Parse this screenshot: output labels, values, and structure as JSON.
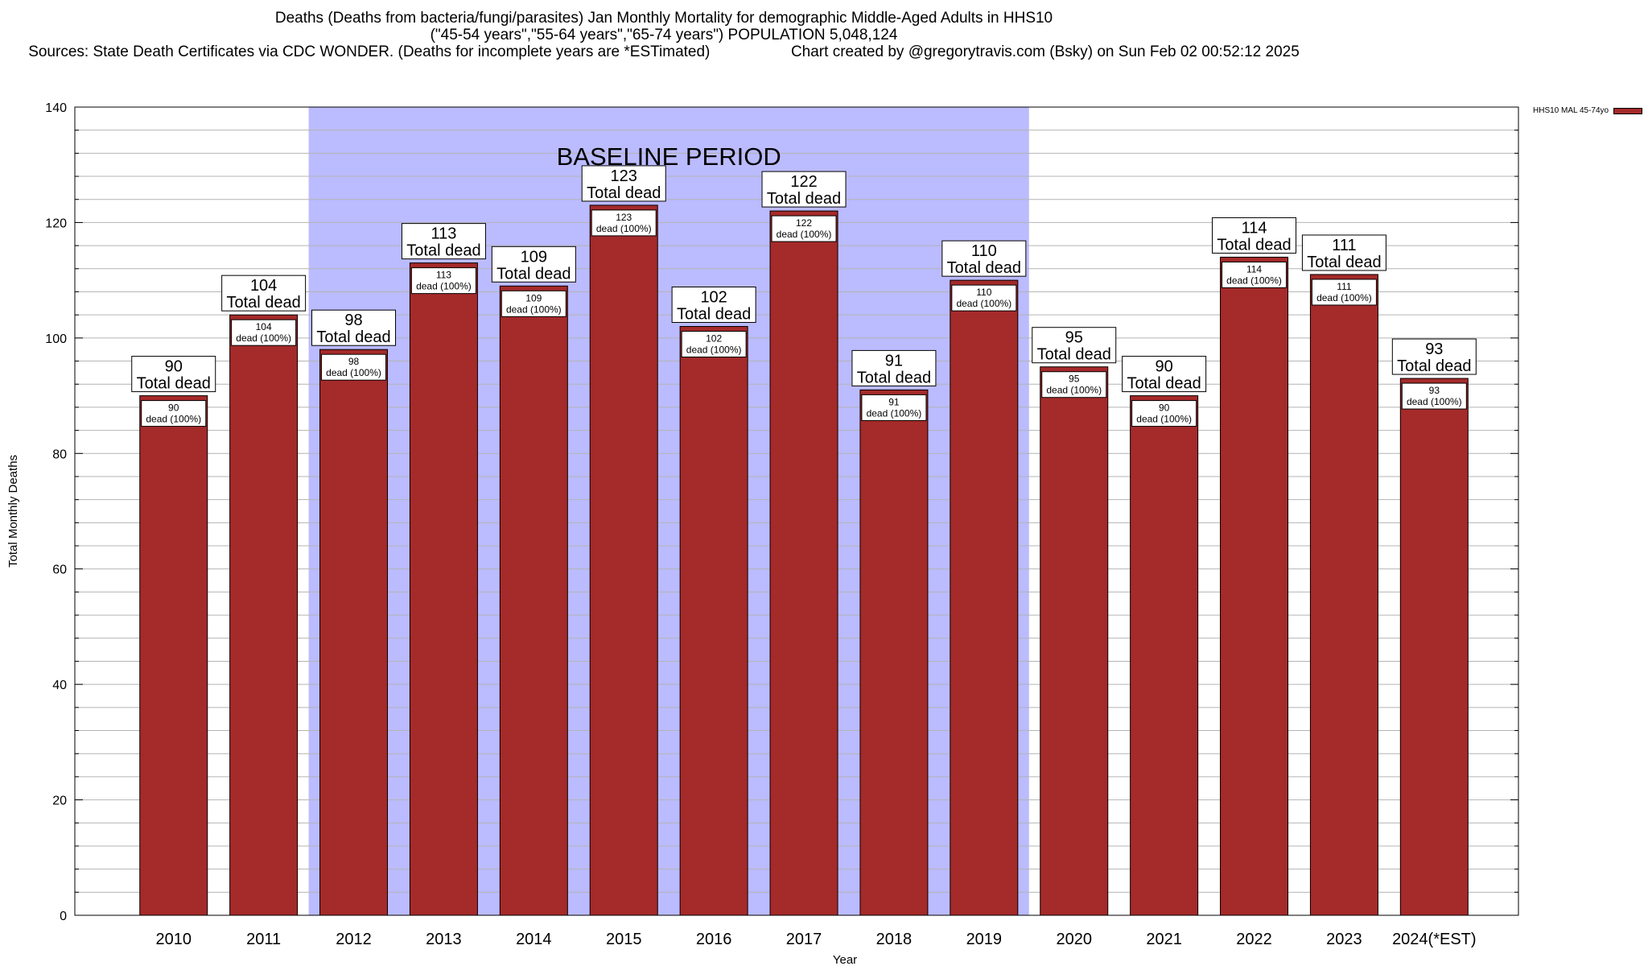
{
  "title": {
    "line1": "Deaths (Deaths from bacteria/fungi/parasites) Jan Monthly Mortality for demographic Middle-Aged Adults in HHS10",
    "line2": "(\"45-54 years\",\"55-64 years\",\"65-74 years\") POPULATION 5,048,124",
    "line3_left": "Sources: State Death Certificates via CDC WONDER. (Deaths for incomplete years are *ESTimated)",
    "line3_right": "Chart created by @gregorytravis.com (Bsky) on Sun Feb 02 00:52:12 2025"
  },
  "legend": {
    "label": "HHS10 MAL 45-74yo",
    "color": "#a52a2a"
  },
  "chart_data": {
    "type": "bar",
    "xlabel": "Year",
    "ylabel": "Total Monthly Deaths",
    "ylim": [
      0,
      140
    ],
    "yticks": [
      0,
      20,
      40,
      60,
      80,
      100,
      120,
      140
    ],
    "grid": true,
    "categories": [
      "2010",
      "2011",
      "2012",
      "2013",
      "2014",
      "2015",
      "2016",
      "2017",
      "2018",
      "2019",
      "2020",
      "2021",
      "2022",
      "2023",
      "2024(*EST)"
    ],
    "series": [
      {
        "name": "HHS10 MAL 45-74yo",
        "values": [
          90,
          104,
          98,
          113,
          109,
          123,
          102,
          122,
          91,
          110,
          95,
          90,
          114,
          111,
          93
        ]
      }
    ],
    "bar_color": "#a52a2a",
    "bar_label_top_suffix": "Total dead",
    "bar_label_inner_suffix": "dead (100%)",
    "baseline_period": {
      "label": "BASELINE PERIOD",
      "from": "2012",
      "to": "2019",
      "color": "#bbbbff"
    }
  }
}
